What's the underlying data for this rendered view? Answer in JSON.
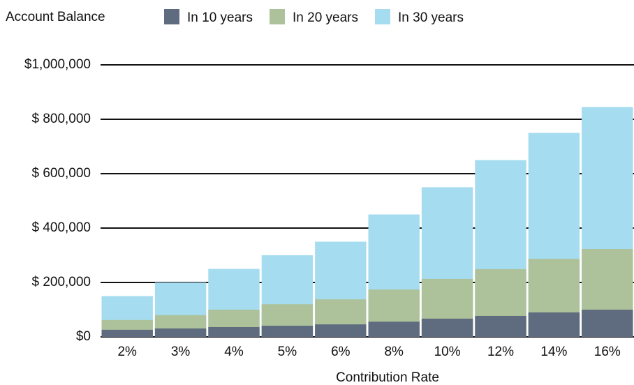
{
  "chart_data": {
    "type": "bar",
    "title": "Account Balance",
    "x_label": "Contribution Rate",
    "categories": [
      "2%",
      "3%",
      "4%",
      "5%",
      "6%",
      "8%",
      "10%",
      "12%",
      "14%",
      "16%"
    ],
    "series": [
      {
        "name": "In 10 years",
        "color": "#5f6b7f",
        "values": [
          26000,
          31000,
          36000,
          41000,
          46000,
          56000,
          67000,
          77000,
          90000,
          100000
        ]
      },
      {
        "name": "In 20 years",
        "color": "#adc29a",
        "values": [
          62000,
          80000,
          100000,
          120000,
          138000,
          174000,
          213000,
          249000,
          287000,
          323000
        ]
      },
      {
        "name": "In 30 years",
        "color": "#a6dcef",
        "values": [
          150000,
          200000,
          250000,
          300000,
          350000,
          450000,
          550000,
          650000,
          750000,
          845000
        ]
      }
    ],
    "ylim": [
      0,
      1000000
    ],
    "yticks": [
      {
        "value": 0,
        "label": "$0"
      },
      {
        "value": 200000,
        "label": "$ 200,000"
      },
      {
        "value": 400000,
        "label": "$ 400,000"
      },
      {
        "value": 600000,
        "label": "$ 600,000"
      },
      {
        "value": 800000,
        "label": "$ 800,000"
      },
      {
        "value": 1000000,
        "label": "$1,000,000"
      }
    ],
    "grid": true
  }
}
